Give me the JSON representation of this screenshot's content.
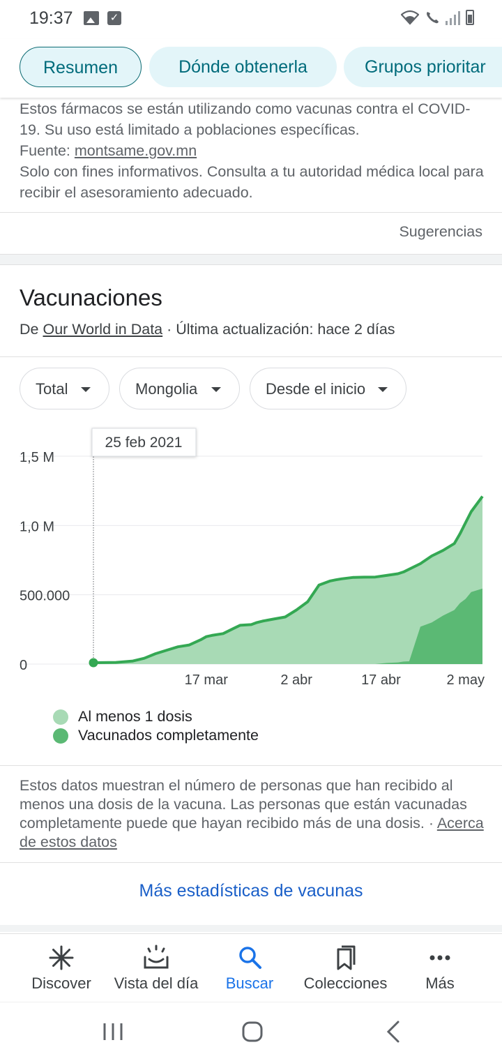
{
  "status_bar": {
    "time": "19:37"
  },
  "tabs": [
    {
      "label": "Resumen",
      "active": true
    },
    {
      "label": "Dónde obtenerla",
      "active": false
    },
    {
      "label": "Grupos prioritar",
      "active": false
    }
  ],
  "info": {
    "line1": "Estos fármacos se están utilizando como vacunas contra el COVID-19. Su uso está limitado a poblaciones específicas.",
    "source_prefix": "Fuente: ",
    "source_link": "montsame.gov.mn",
    "disclaimer": "Solo con fines informativos. Consulta a tu autoridad médica local para recibir el asesoramiento adecuado."
  },
  "feedback_label": "Sugerencias",
  "vaccinations": {
    "title": "Vacunaciones",
    "sub_prefix": "De ",
    "sub_link": "Our World in Data",
    "sub_suffix": " · Última actualización: hace 2 días",
    "filters": {
      "metric": "Total",
      "location": "Mongolia",
      "range": "Desde el inicio"
    },
    "tooltip_date": "25 feb 2021",
    "legend": [
      {
        "label": "Al menos 1 dosis",
        "color": "#a8dab5"
      },
      {
        "label": "Vacunados completamente",
        "color": "#5bb974"
      }
    ],
    "note": "Estos datos muestran el número de personas que han recibido al menos una dosis de la vacuna. Las personas que están vacunadas completamente puede que hayan recibido más de una dosis.",
    "note_sep": " · ",
    "note_link": "Acerca de estos datos",
    "more_link": "Más estadísticas de vacunas"
  },
  "chart_data": {
    "type": "area",
    "x": [
      "2021-02-25",
      "2021-03-01",
      "2021-03-04",
      "2021-03-06",
      "2021-03-08",
      "2021-03-10",
      "2021-03-12",
      "2021-03-14",
      "2021-03-16",
      "2021-03-17",
      "2021-03-18",
      "2021-03-20",
      "2021-03-22",
      "2021-03-23",
      "2021-03-25",
      "2021-03-26",
      "2021-03-27",
      "2021-03-29",
      "2021-03-31",
      "2021-04-02",
      "2021-04-04",
      "2021-04-06",
      "2021-04-08",
      "2021-04-09",
      "2021-04-10",
      "2021-04-12",
      "2021-04-14",
      "2021-04-16",
      "2021-04-18",
      "2021-04-20",
      "2021-04-21",
      "2021-04-22",
      "2021-04-24",
      "2021-04-26",
      "2021-04-28",
      "2021-04-30",
      "2021-05-01",
      "2021-05-02",
      "2021-05-03",
      "2021-05-05"
    ],
    "series": [
      {
        "name": "Al menos 1 dosis",
        "color": "#a8dab5",
        "line_color": "#34a853",
        "values": [
          10000,
          12000,
          22000,
          42000,
          75000,
          100000,
          125000,
          138000,
          175000,
          198000,
          207000,
          220000,
          260000,
          280000,
          285000,
          300000,
          310000,
          325000,
          340000,
          390000,
          450000,
          570000,
          600000,
          608000,
          615000,
          625000,
          627000,
          628000,
          640000,
          652000,
          665000,
          685000,
          725000,
          780000,
          820000,
          870000,
          940000,
          1020000,
          1100000,
          1210000
        ]
      },
      {
        "name": "Vacunados completamente",
        "color": "#5bb974",
        "values": [
          0,
          0,
          0,
          0,
          0,
          0,
          0,
          0,
          0,
          0,
          0,
          0,
          0,
          0,
          0,
          0,
          0,
          0,
          0,
          0,
          0,
          0,
          0,
          0,
          0,
          0,
          0,
          0,
          8000,
          12000,
          18000,
          20000,
          270000,
          300000,
          350000,
          390000,
          440000,
          470000,
          520000,
          545000
        ]
      }
    ],
    "x_ticks": [
      "17 mar",
      "2 abr",
      "17 abr",
      "2 may"
    ],
    "y_ticks": [
      "0",
      "500.000",
      "1,0 M",
      "1,5 M"
    ],
    "ylim": [
      0,
      1500000
    ],
    "grid": true
  },
  "bottom_nav": [
    {
      "label": "Discover",
      "icon": "asterisk-icon",
      "active": false
    },
    {
      "label": "Vista del día",
      "icon": "sunrise-icon",
      "active": false
    },
    {
      "label": "Buscar",
      "icon": "search-icon",
      "active": true
    },
    {
      "label": "Colecciones",
      "icon": "collections-icon",
      "active": false
    },
    {
      "label": "Más",
      "icon": "more-icon",
      "active": false
    }
  ]
}
